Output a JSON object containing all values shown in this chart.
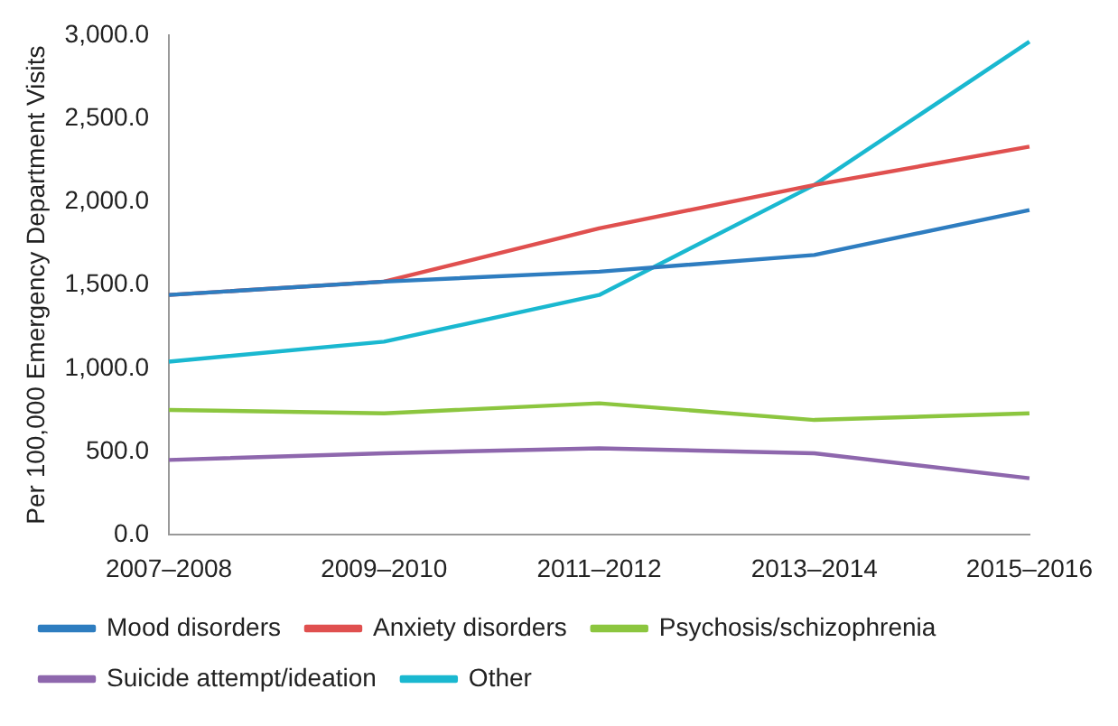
{
  "chart_data": {
    "type": "line",
    "ylabel": "Per 100,000 Emergency Department Visits",
    "categories": [
      "2007–2008",
      "2009–2010",
      "2011–2012",
      "2013–2014",
      "2015–2016"
    ],
    "series": [
      {
        "name": "Mood disorders",
        "color": "#2e7dc0",
        "values": [
          1440,
          1520,
          1580,
          1680,
          1950
        ]
      },
      {
        "name": "Anxiety disorders",
        "color": "#e0504f",
        "values": [
          1440,
          1520,
          1840,
          2100,
          2330
        ]
      },
      {
        "name": "Psychosis/schizophrenia",
        "color": "#8cc63f",
        "values": [
          750,
          730,
          790,
          690,
          730
        ]
      },
      {
        "name": "Suicide attempt/ideation",
        "color": "#8e67ad",
        "values": [
          450,
          490,
          520,
          490,
          340
        ]
      },
      {
        "name": "Other",
        "color": "#1ab8d0",
        "values": [
          1040,
          1160,
          1440,
          2100,
          2960
        ]
      }
    ],
    "ylim": [
      0,
      3000
    ],
    "yticks": [
      {
        "value": 0,
        "label": "0.0"
      },
      {
        "value": 500,
        "label": "500.0"
      },
      {
        "value": 1000,
        "label": "1,000.0"
      },
      {
        "value": 1500,
        "label": "1,500.0"
      },
      {
        "value": 2000,
        "label": "2,000.0"
      },
      {
        "value": 2500,
        "label": "2,500.0"
      },
      {
        "value": 3000,
        "label": "3,000.0"
      }
    ],
    "grid": false,
    "legend": "bottom",
    "marker": "none",
    "line_style": "solid"
  }
}
